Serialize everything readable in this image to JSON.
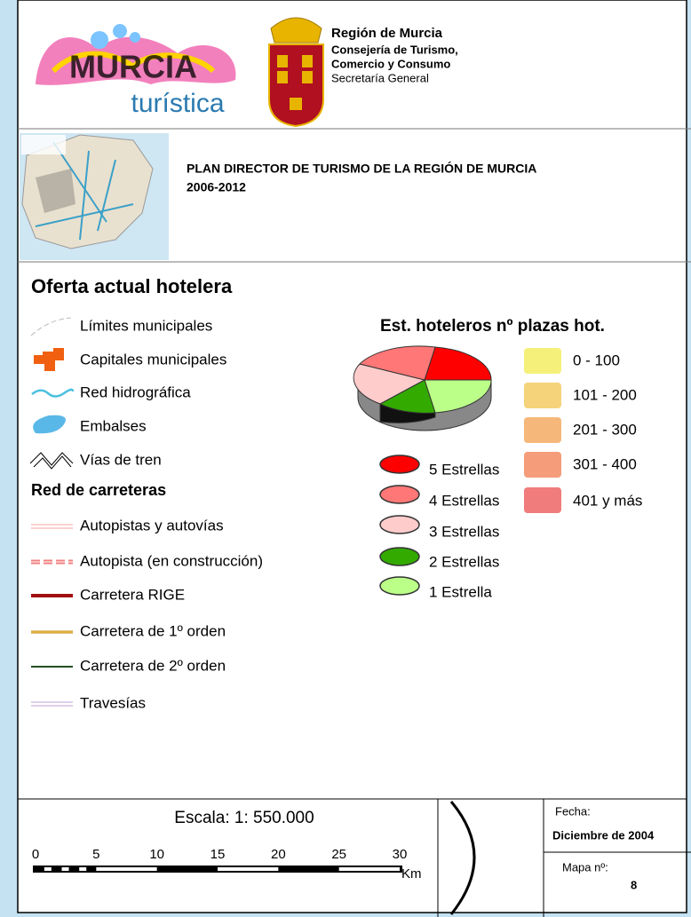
{
  "header": {
    "logo": {
      "title": "MURCIA",
      "subtitle": "turística"
    },
    "region": "Región de Murcia",
    "department": [
      "Consejería de Turismo,",
      "Comercio y Consumo"
    ],
    "office": "Secretaría General"
  },
  "plan": [
    "PLAN DIRECTOR DE TURISMO DE LA REGIÓN DE MURCIA",
    "2006-2012"
  ],
  "legend": {
    "title": "Oferta actual hotelera",
    "items": [
      "Límites municipales",
      "Capitales municipales",
      "Red hidrográfica",
      "Embalses",
      "Vías de tren"
    ],
    "roads_title": "Red de carreteras",
    "roads": [
      "Autopistas y autovías",
      "Autopista (en construcción)",
      "Carretera RIGE",
      "Carretera de 1º orden",
      "Carretera de 2º orden",
      "Travesías"
    ],
    "hotels_title": "Est. hoteleros nº plazas hot.",
    "stars": [
      "5 Estrellas",
      "4 Estrellas",
      "3 Estrellas",
      "2 Estrellas",
      "1 Estrella"
    ],
    "places": [
      "0 - 100",
      "101 - 200",
      "201 - 300",
      "301 - 400",
      "401 y más"
    ]
  },
  "scale": {
    "title": "Escala: 1: 550.000",
    "ticks": [
      0,
      5,
      10,
      15,
      20,
      25,
      30
    ],
    "unit": "Km"
  },
  "info": {
    "date_label": "Fecha:",
    "date": "Diciembre de 2004",
    "map_label": "Mapa nº:",
    "map_number": "8"
  }
}
